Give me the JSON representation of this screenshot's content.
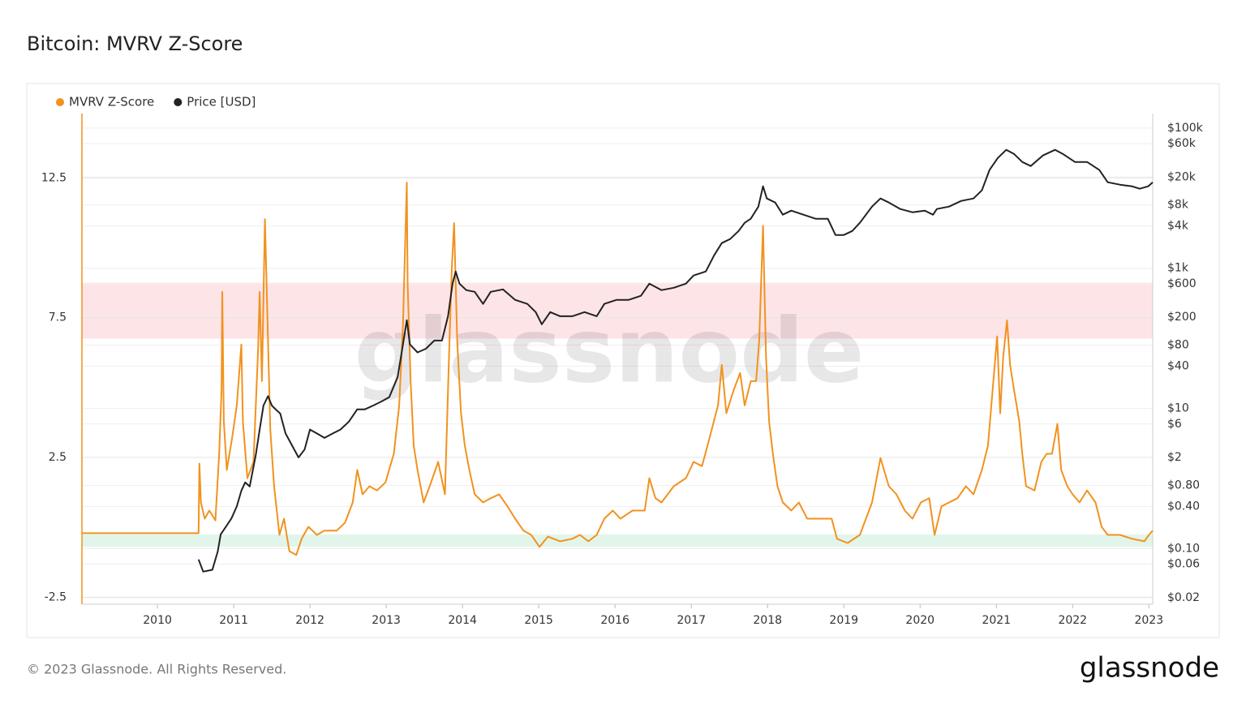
{
  "chart_data": {
    "type": "line",
    "title": "Bitcoin: MVRV Z-Score",
    "watermark": "glassnode",
    "legend": "top-left",
    "grid": true,
    "xlim": [
      2009.01,
      2023.05
    ],
    "xticks": [
      2010,
      2011,
      2012,
      2013,
      2014,
      2015,
      2016,
      2017,
      2018,
      2019,
      2020,
      2021,
      2022,
      2023
    ],
    "ylim": [
      -2.75,
      14.8
    ],
    "yticks": [
      -2.5,
      2.5,
      7.5,
      12.5
    ],
    "y2scale": "log",
    "y2lim": [
      0.0161,
      161000
    ],
    "y2ticks": [
      {
        "value": 0.02,
        "label": "$0.02"
      },
      {
        "value": 0.06,
        "label": "$0.06"
      },
      {
        "value": 0.1,
        "label": "$0.10"
      },
      {
        "value": 0.4,
        "label": "$0.40"
      },
      {
        "value": 0.8,
        "label": "$0.80"
      },
      {
        "value": 2,
        "label": "$2"
      },
      {
        "value": 6,
        "label": "$6"
      },
      {
        "value": 10,
        "label": "$10"
      },
      {
        "value": 40,
        "label": "$40"
      },
      {
        "value": 80,
        "label": "$80"
      },
      {
        "value": 200,
        "label": "$200"
      },
      {
        "value": 600,
        "label": "$600"
      },
      {
        "value": 1000,
        "label": "$1k"
      },
      {
        "value": 4000,
        "label": "$4k"
      },
      {
        "value": 8000,
        "label": "$8k"
      },
      {
        "value": 20000,
        "label": "$20k"
      },
      {
        "value": 60000,
        "label": "$60k"
      },
      {
        "value": 100000,
        "label": "$100k"
      }
    ],
    "bands": [
      {
        "range": [
          6.75,
          8.75
        ],
        "color": "#fde4e7"
      },
      {
        "range": [
          -0.7,
          -0.25
        ],
        "color": "#e2f5ea"
      }
    ],
    "series": [
      {
        "name": "MVRV Z-Score",
        "color": "#f2921f",
        "axis": "y",
        "x": [
          2009.01,
          2010.54,
          2010.55,
          2010.57,
          2010.62,
          2010.68,
          2010.76,
          2010.81,
          2010.84,
          2010.85,
          2010.87,
          2010.91,
          2010.98,
          2011.04,
          2011.1,
          2011.12,
          2011.18,
          2011.26,
          2011.32,
          2011.34,
          2011.37,
          2011.41,
          2011.45,
          2011.48,
          2011.53,
          2011.6,
          2011.66,
          2011.73,
          2011.82,
          2011.89,
          2011.98,
          2012.09,
          2012.19,
          2012.35,
          2012.46,
          2012.56,
          2012.62,
          2012.69,
          2012.78,
          2012.88,
          2012.99,
          2013.1,
          2013.17,
          2013.22,
          2013.27,
          2013.28,
          2013.32,
          2013.36,
          2013.41,
          2013.49,
          2013.57,
          2013.68,
          2013.77,
          2013.82,
          2013.86,
          2013.89,
          2013.93,
          2013.98,
          2014.03,
          2014.09,
          2014.16,
          2014.27,
          2014.37,
          2014.48,
          2014.59,
          2014.69,
          2014.8,
          2014.9,
          2015.01,
          2015.12,
          2015.28,
          2015.44,
          2015.54,
          2015.65,
          2015.76,
          2015.86,
          2015.97,
          2016.07,
          2016.23,
          2016.39,
          2016.45,
          2016.53,
          2016.61,
          2016.77,
          2016.93,
          2017.03,
          2017.14,
          2017.24,
          2017.35,
          2017.4,
          2017.46,
          2017.56,
          2017.64,
          2017.7,
          2017.78,
          2017.85,
          2017.89,
          2017.94,
          2017.98,
          2018.02,
          2018.07,
          2018.13,
          2018.2,
          2018.31,
          2018.41,
          2018.52,
          2018.68,
          2018.84,
          2018.91,
          2019.05,
          2019.21,
          2019.37,
          2019.48,
          2019.59,
          2019.69,
          2019.8,
          2019.9,
          2020.01,
          2020.12,
          2020.19,
          2020.28,
          2020.38,
          2020.49,
          2020.6,
          2020.7,
          2020.81,
          2020.89,
          2020.97,
          2021.01,
          2021.05,
          2021.09,
          2021.14,
          2021.18,
          2021.23,
          2021.3,
          2021.34,
          2021.39,
          2021.5,
          2021.59,
          2021.66,
          2021.73,
          2021.8,
          2021.85,
          2021.93,
          2022.0,
          2022.09,
          2022.19,
          2022.3,
          2022.38,
          2022.46,
          2022.62,
          2022.78,
          2022.94,
          2023.0,
          2023.05
        ],
        "values": [
          -0.21,
          -0.21,
          2.28,
          0.89,
          0.31,
          0.6,
          0.25,
          2.63,
          4.94,
          8.42,
          3.79,
          2.05,
          3.21,
          4.36,
          6.54,
          3.79,
          1.76,
          2.34,
          6.39,
          8.42,
          5.23,
          11.02,
          6.68,
          3.5,
          1.47,
          -0.27,
          0.31,
          -0.85,
          -0.99,
          -0.41,
          0.02,
          -0.27,
          -0.12,
          -0.12,
          0.17,
          0.89,
          2.05,
          1.18,
          1.47,
          1.32,
          1.61,
          2.63,
          4.36,
          7.26,
          12.33,
          8.71,
          5.23,
          2.92,
          2.05,
          0.89,
          1.47,
          2.34,
          1.18,
          5.81,
          9.29,
          10.88,
          6.68,
          4.08,
          2.92,
          2.05,
          1.18,
          0.89,
          1.04,
          1.18,
          0.75,
          0.31,
          -0.12,
          -0.27,
          -0.7,
          -0.33,
          -0.5,
          -0.41,
          -0.27,
          -0.5,
          -0.27,
          0.31,
          0.6,
          0.31,
          0.6,
          0.6,
          1.76,
          1.04,
          0.89,
          1.47,
          1.76,
          2.34,
          2.19,
          3.21,
          4.36,
          5.81,
          4.08,
          4.94,
          5.52,
          4.36,
          5.23,
          5.23,
          6.68,
          10.79,
          6.1,
          3.79,
          2.63,
          1.47,
          0.89,
          0.6,
          0.89,
          0.31,
          0.31,
          0.31,
          -0.41,
          -0.56,
          -0.27,
          0.89,
          2.48,
          1.47,
          1.18,
          0.6,
          0.31,
          0.89,
          1.04,
          -0.27,
          0.75,
          0.89,
          1.04,
          1.47,
          1.18,
          2.05,
          2.92,
          5.52,
          6.83,
          4.08,
          6.1,
          7.4,
          5.81,
          4.94,
          3.79,
          2.63,
          1.47,
          1.32,
          2.34,
          2.63,
          2.63,
          3.7,
          2.05,
          1.47,
          1.18,
          0.89,
          1.32,
          0.89,
          0.02,
          -0.27,
          -0.27,
          -0.41,
          -0.5,
          -0.27,
          -0.12
        ]
      },
      {
        "name": "Price [USD]",
        "color": "#222222",
        "axis": "y2",
        "x": [
          2010.54,
          2010.6,
          2010.72,
          2010.79,
          2010.83,
          2010.89,
          2010.97,
          2011.04,
          2011.1,
          2011.15,
          2011.21,
          2011.29,
          2011.34,
          2011.39,
          2011.45,
          2011.5,
          2011.55,
          2011.61,
          2011.68,
          2011.77,
          2011.85,
          2011.93,
          2012.0,
          2012.09,
          2012.19,
          2012.3,
          2012.4,
          2012.51,
          2012.62,
          2012.72,
          2012.83,
          2012.94,
          2013.04,
          2013.15,
          2013.21,
          2013.27,
          2013.31,
          2013.41,
          2013.52,
          2013.63,
          2013.73,
          2013.81,
          2013.87,
          2013.91,
          2013.96,
          2014.05,
          2014.16,
          2014.27,
          2014.37,
          2014.53,
          2014.69,
          2014.85,
          2014.96,
          2015.04,
          2015.15,
          2015.28,
          2015.44,
          2015.6,
          2015.76,
          2015.86,
          2016.02,
          2016.18,
          2016.34,
          2016.45,
          2016.61,
          2016.77,
          2016.93,
          2017.03,
          2017.19,
          2017.3,
          2017.4,
          2017.51,
          2017.62,
          2017.7,
          2017.78,
          2017.88,
          2017.94,
          2017.99,
          2018.1,
          2018.2,
          2018.31,
          2018.47,
          2018.63,
          2018.79,
          2018.89,
          2019.0,
          2019.11,
          2019.21,
          2019.37,
          2019.48,
          2019.59,
          2019.74,
          2019.9,
          2020.06,
          2020.17,
          2020.22,
          2020.38,
          2020.54,
          2020.7,
          2020.81,
          2020.91,
          2021.02,
          2021.13,
          2021.23,
          2021.34,
          2021.45,
          2021.61,
          2021.77,
          2021.87,
          2022.03,
          2022.19,
          2022.35,
          2022.46,
          2022.62,
          2022.78,
          2022.88,
          2022.99,
          2023.05
        ],
        "values": [
          0.07,
          0.047,
          0.05,
          0.091,
          0.16,
          0.2,
          0.27,
          0.4,
          0.67,
          0.88,
          0.77,
          2.2,
          5.0,
          11,
          15,
          11,
          9.7,
          8.5,
          4.4,
          2.9,
          2.0,
          2.6,
          5.0,
          4.4,
          3.8,
          4.4,
          5.0,
          6.5,
          9.7,
          9.7,
          11,
          12.6,
          14.5,
          28,
          71,
          182,
          82,
          63,
          71,
          93,
          93,
          207,
          603,
          899,
          603,
          487,
          461,
          310,
          461,
          500,
          354,
          310,
          237,
          159,
          237,
          207,
          207,
          237,
          207,
          310,
          354,
          354,
          405,
          603,
          487,
          527,
          603,
          787,
          899,
          1531,
          2286,
          2612,
          3404,
          4446,
          5080,
          7586,
          14757,
          9886,
          8664,
          5808,
          6637,
          5808,
          5080,
          5080,
          2985,
          2985,
          3404,
          4446,
          7586,
          9886,
          8664,
          7000,
          6295,
          6637,
          5808,
          7000,
          7586,
          9141,
          9886,
          12910,
          25180,
          37500,
          49000,
          42850,
          32800,
          28700,
          40600,
          49000,
          42850,
          32800,
          32800,
          25180,
          16870,
          15560,
          14757,
          13620,
          14757,
          16870
        ]
      }
    ]
  },
  "footer": {
    "copyright": "© 2023 Glassnode. All Rights Reserved.",
    "logo": "glassnode"
  }
}
